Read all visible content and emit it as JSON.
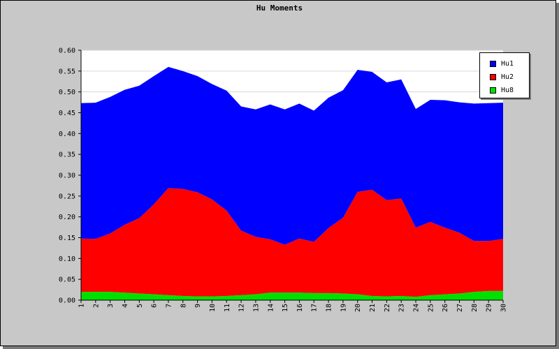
{
  "chart_data": {
    "type": "area",
    "stacked": true,
    "title": "Hu Moments",
    "xlabel": "",
    "ylabel": "",
    "ylim": [
      0,
      0.6
    ],
    "yticks": [
      "0.00",
      "0.05",
      "0.10",
      "0.15",
      "0.20",
      "0.25",
      "0.30",
      "0.35",
      "0.40",
      "0.45",
      "0.50",
      "0.55",
      "0.60"
    ],
    "x": [
      "1",
      "2",
      "3",
      "4",
      "5",
      "6",
      "7",
      "8",
      "9",
      "10",
      "11",
      "12",
      "13",
      "14",
      "15",
      "16",
      "17",
      "18",
      "19",
      "20",
      "21",
      "22",
      "23",
      "24",
      "25",
      "26",
      "27",
      "28",
      "29",
      "30"
    ],
    "grid": true,
    "legend_position": "top-right",
    "series": [
      {
        "name": "Hu8",
        "color": "#00e000",
        "values": [
          0.02,
          0.02,
          0.02,
          0.018,
          0.016,
          0.014,
          0.012,
          0.01,
          0.009,
          0.009,
          0.01,
          0.012,
          0.014,
          0.018,
          0.018,
          0.018,
          0.017,
          0.017,
          0.016,
          0.014,
          0.01,
          0.009,
          0.01,
          0.008,
          0.012,
          0.014,
          0.016,
          0.02,
          0.022,
          0.022
        ]
      },
      {
        "name": "Hu2",
        "color": "#ff0000",
        "values": [
          0.128,
          0.127,
          0.14,
          0.163,
          0.181,
          0.216,
          0.257,
          0.257,
          0.25,
          0.233,
          0.205,
          0.155,
          0.138,
          0.128,
          0.115,
          0.13,
          0.123,
          0.156,
          0.182,
          0.246,
          0.255,
          0.231,
          0.234,
          0.166,
          0.176,
          0.16,
          0.146,
          0.122,
          0.12,
          0.125
        ]
      },
      {
        "name": "Hu1",
        "color": "#0000ff",
        "values": [
          0.325,
          0.327,
          0.328,
          0.324,
          0.318,
          0.308,
          0.291,
          0.283,
          0.279,
          0.277,
          0.288,
          0.298,
          0.306,
          0.324,
          0.325,
          0.324,
          0.315,
          0.313,
          0.306,
          0.293,
          0.283,
          0.283,
          0.286,
          0.285,
          0.293,
          0.306,
          0.313,
          0.33,
          0.331,
          0.327
        ]
      }
    ],
    "legend_order": [
      "Hu1",
      "Hu2",
      "Hu8"
    ]
  }
}
